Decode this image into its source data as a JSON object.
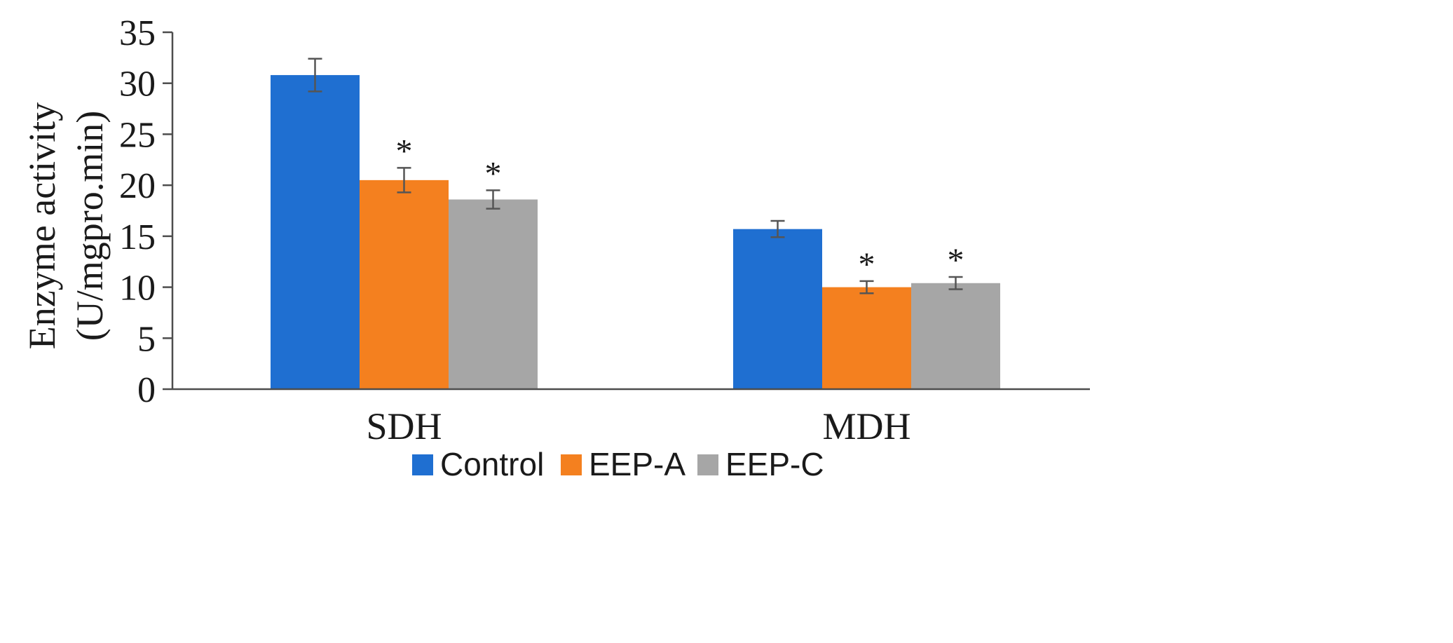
{
  "chart_data": {
    "type": "bar",
    "title": "",
    "xlabel": "",
    "ylabel_lines": [
      "Enzyme activity",
      "(U/mgpro.min)"
    ],
    "ylim": [
      0,
      35
    ],
    "yticks": [
      "0",
      "5",
      "10",
      "15",
      "20",
      "25",
      "30",
      "35"
    ],
    "categories": [
      "SDH",
      "MDH"
    ],
    "series": [
      {
        "name": "Control",
        "color": "#1f6fd1",
        "values": [
          30.8,
          15.7
        ],
        "errors": [
          1.6,
          0.8
        ],
        "markers": [
          "",
          ""
        ]
      },
      {
        "name": "EEP-A",
        "color": "#f4801f",
        "values": [
          20.5,
          10.0
        ],
        "errors": [
          1.2,
          0.6
        ],
        "markers": [
          "*",
          "*"
        ]
      },
      {
        "name": "EEP-C",
        "color": "#a6a6a6",
        "values": [
          18.6,
          10.4
        ],
        "errors": [
          0.9,
          0.6
        ],
        "markers": [
          "*",
          "*"
        ]
      }
    ],
    "grid": false,
    "legend_position": "bottom-center"
  }
}
